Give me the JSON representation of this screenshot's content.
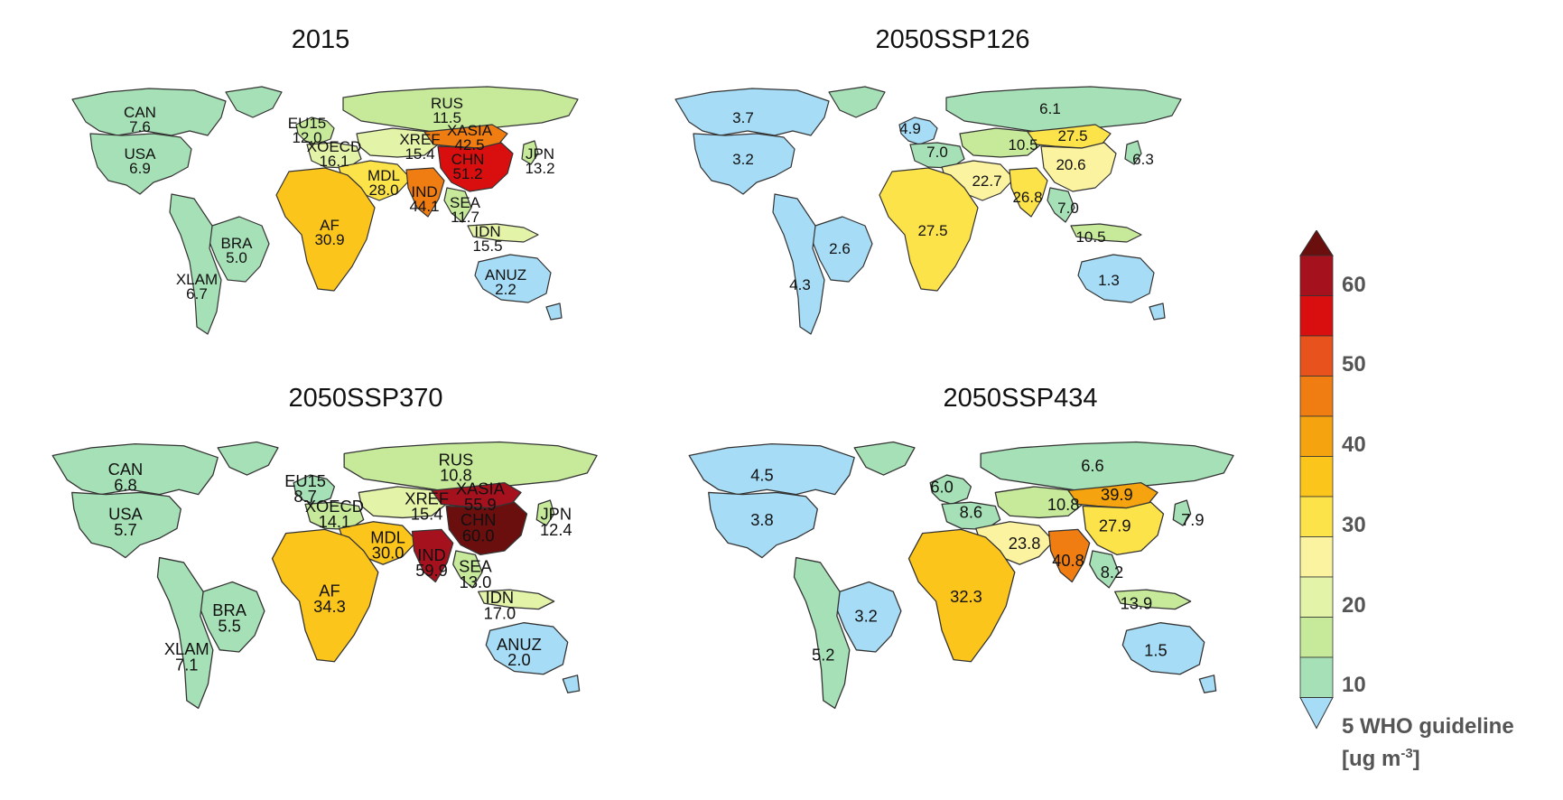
{
  "colors": {
    "below_5": "#a6dcf6",
    "5_10": "#a6e0b6",
    "10_15": "#c6ea9a",
    "15_20": "#e3f3a8",
    "20_25": "#fbf3a0",
    "25_30": "#fde34a",
    "30_35": "#fcc51c",
    "35_40": "#f5a30e",
    "40_45": "#ef7d12",
    "45_50": "#e7521d",
    "50_55": "#d90f0f",
    "55_60": "#a6111e",
    "above_60": "#6b0e0e"
  },
  "colorbar": {
    "ticks": [
      "60",
      "50",
      "40",
      "30",
      "20",
      "10",
      "5 WHO guideline"
    ],
    "unit": "[ug m-3]"
  },
  "panels": [
    {
      "title": "2015",
      "regions": [
        {
          "code": "CAN",
          "value": "7.6"
        },
        {
          "code": "USA",
          "value": "6.9"
        },
        {
          "code": "EU15",
          "value": "12.0"
        },
        {
          "code": "XOECD",
          "value": "16.1"
        },
        {
          "code": "XREF",
          "value": "15.4"
        },
        {
          "code": "RUS",
          "value": "11.5"
        },
        {
          "code": "XASIA",
          "value": "42.5"
        },
        {
          "code": "CHN",
          "value": "51.2"
        },
        {
          "code": "JPN",
          "value": "13.2"
        },
        {
          "code": "MDL",
          "value": "28.0"
        },
        {
          "code": "IND",
          "value": "44.1"
        },
        {
          "code": "SEA",
          "value": "11.7"
        },
        {
          "code": "IDN",
          "value": "15.5"
        },
        {
          "code": "AF",
          "value": "30.9"
        },
        {
          "code": "BRA",
          "value": "5.0"
        },
        {
          "code": "XLAM",
          "value": "6.7"
        },
        {
          "code": "ANUZ",
          "value": "2.2"
        }
      ]
    },
    {
      "title": "2050SSP126",
      "regions": [
        {
          "code": "",
          "value": "3.7"
        },
        {
          "code": "",
          "value": "3.2"
        },
        {
          "code": "",
          "value": "4.9"
        },
        {
          "code": "",
          "value": "7.0"
        },
        {
          "code": "",
          "value": "10.5"
        },
        {
          "code": "",
          "value": "6.1"
        },
        {
          "code": "",
          "value": "27.5"
        },
        {
          "code": "",
          "value": "20.6"
        },
        {
          "code": "",
          "value": "6.3"
        },
        {
          "code": "",
          "value": "22.7"
        },
        {
          "code": "",
          "value": "26.8"
        },
        {
          "code": "",
          "value": "7.0"
        },
        {
          "code": "",
          "value": "10.5"
        },
        {
          "code": "",
          "value": "27.5"
        },
        {
          "code": "",
          "value": "2.6"
        },
        {
          "code": "",
          "value": "4.3"
        },
        {
          "code": "",
          "value": "1.3"
        }
      ]
    },
    {
      "title": "2050SSP370",
      "regions": [
        {
          "code": "CAN",
          "value": "6.8"
        },
        {
          "code": "USA",
          "value": "5.7"
        },
        {
          "code": "EU15",
          "value": "8.7"
        },
        {
          "code": "XOECD",
          "value": "14.1"
        },
        {
          "code": "XREF",
          "value": "15.4"
        },
        {
          "code": "RUS",
          "value": "10.8"
        },
        {
          "code": "XASIA",
          "value": "55.9"
        },
        {
          "code": "CHN",
          "value": "60.0"
        },
        {
          "code": "JPN",
          "value": "12.4"
        },
        {
          "code": "MDL",
          "value": "30.0"
        },
        {
          "code": "IND",
          "value": "59.9"
        },
        {
          "code": "SEA",
          "value": "13.0"
        },
        {
          "code": "IDN",
          "value": "17.0"
        },
        {
          "code": "AF",
          "value": "34.3"
        },
        {
          "code": "BRA",
          "value": "5.5"
        },
        {
          "code": "XLAM",
          "value": "7.1"
        },
        {
          "code": "ANUZ",
          "value": "2.0"
        }
      ]
    },
    {
      "title": "2050SSP434",
      "regions": [
        {
          "code": "",
          "value": "4.5"
        },
        {
          "code": "",
          "value": "3.8"
        },
        {
          "code": "",
          "value": "6.0"
        },
        {
          "code": "",
          "value": "8.6"
        },
        {
          "code": "",
          "value": "10.8"
        },
        {
          "code": "",
          "value": "6.6"
        },
        {
          "code": "",
          "value": "39.9"
        },
        {
          "code": "",
          "value": "27.9"
        },
        {
          "code": "",
          "value": "7.9"
        },
        {
          "code": "",
          "value": "23.8"
        },
        {
          "code": "",
          "value": "40.8"
        },
        {
          "code": "",
          "value": "8.2"
        },
        {
          "code": "",
          "value": "13.9"
        },
        {
          "code": "",
          "value": "32.3"
        },
        {
          "code": "",
          "value": "3.2"
        },
        {
          "code": "",
          "value": "5.2"
        },
        {
          "code": "",
          "value": "1.5"
        }
      ]
    }
  ]
}
